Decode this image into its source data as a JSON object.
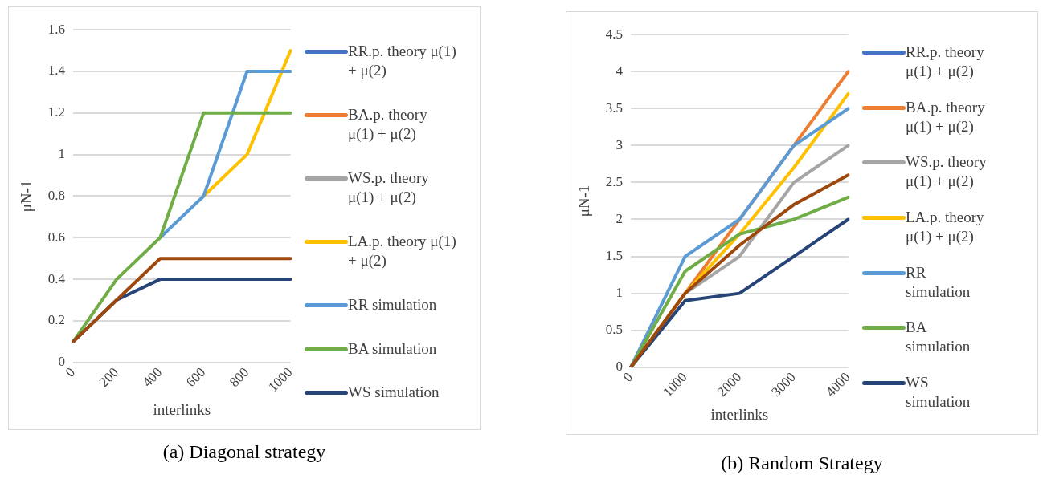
{
  "chart_data": [
    {
      "type": "line",
      "xlabel": "interlinks",
      "ylabel": "μN-1",
      "categories": [
        "0",
        "200",
        "400",
        "600",
        "800",
        "1000"
      ],
      "ylim": [
        0,
        1.6
      ],
      "yticks": [
        0,
        0.2,
        0.4,
        0.6,
        0.8,
        1,
        1.2,
        1.4,
        1.6
      ],
      "grid": "y",
      "legend": "right",
      "marker": "none",
      "line_style": "solid",
      "annotations": [
        "(a) Diagonal strategy"
      ],
      "series": [
        {
          "name": "RR.p. theory μ(1) + μ(2)",
          "color": "#4472c4",
          "values": [
            null,
            null,
            null,
            null,
            null,
            null
          ]
        },
        {
          "name": "BA.p. theory μ(1) + μ(2)",
          "color": "#ed7d31",
          "values": [
            null,
            null,
            null,
            null,
            null,
            null
          ]
        },
        {
          "name": "WS.p. theory μ(1) + μ(2)",
          "color": "#a5a5a5",
          "values": [
            null,
            null,
            null,
            null,
            null,
            null
          ]
        },
        {
          "name": "LA.p. theory μ(1) + μ(2)",
          "color": "#ffc000",
          "values": [
            null,
            null,
            null,
            0.8,
            1.0,
            1.5
          ]
        },
        {
          "name": "RR simulation",
          "color": "#5b9bd5",
          "values": [
            null,
            null,
            0.6,
            0.8,
            1.4,
            1.4
          ]
        },
        {
          "name": "BA simulation",
          "color": "#70ad47",
          "values": [
            0.1,
            0.4,
            0.6,
            1.2,
            1.2,
            1.2
          ]
        },
        {
          "name": "WS simulation",
          "color": "#264478",
          "values": [
            0.1,
            0.3,
            0.4,
            0.4,
            0.4,
            0.4
          ]
        },
        {
          "color": "#9e480e",
          "values": [
            0.1,
            0.3,
            0.5,
            0.5,
            0.5,
            0.5
          ]
        }
      ]
    },
    {
      "type": "line",
      "xlabel": "interlinks",
      "ylabel": "μN-1",
      "categories": [
        "0",
        "1000",
        "2000",
        "3000",
        "4000"
      ],
      "ylim": [
        0,
        4.5
      ],
      "yticks": [
        0,
        0.5,
        1,
        1.5,
        2,
        2.5,
        3,
        3.5,
        4,
        4.5
      ],
      "grid": "y",
      "legend": "right",
      "marker": "none",
      "line_style": "solid",
      "annotations": [
        "(b) Random Strategy"
      ],
      "series": [
        {
          "name": "RR.p. theory μ(1) + μ(2)",
          "color": "#4472c4",
          "values": [
            null,
            null,
            null,
            null,
            null
          ]
        },
        {
          "name": "BA.p. theory μ(1) + μ(2)",
          "color": "#ed7d31",
          "values": [
            0,
            1.0,
            2.0,
            3.0,
            4.0
          ]
        },
        {
          "name": "WS.p. theory μ(1) + μ(2)",
          "color": "#a5a5a5",
          "values": [
            0,
            1.0,
            1.5,
            2.5,
            3.0
          ]
        },
        {
          "name": "LA.p. theory μ(1) + μ(2)",
          "color": "#ffc000",
          "values": [
            0,
            1.0,
            1.8,
            2.7,
            3.7
          ]
        },
        {
          "name": "RR simulation",
          "color": "#5b9bd5",
          "values": [
            0,
            1.5,
            2.0,
            3.0,
            3.5
          ]
        },
        {
          "name": "BA simulation",
          "color": "#70ad47",
          "values": [
            0,
            1.3,
            1.8,
            2.0,
            2.3
          ]
        },
        {
          "name": "WS simulation",
          "color": "#264478",
          "values": [
            0,
            0.9,
            1.0,
            1.5,
            2.0
          ]
        },
        {
          "color": "#9e480e",
          "values": [
            0,
            1.0,
            1.65,
            2.2,
            2.6
          ]
        }
      ]
    }
  ]
}
